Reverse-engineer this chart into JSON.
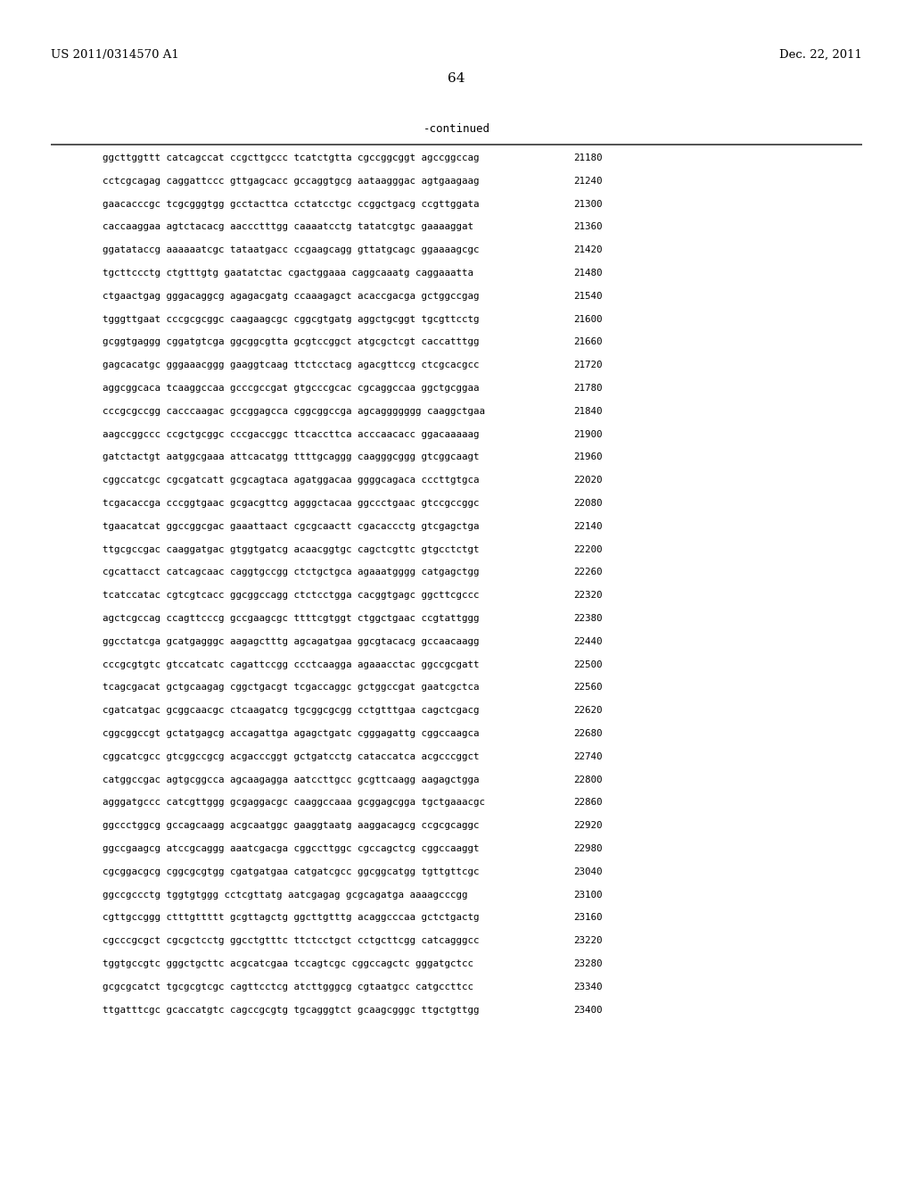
{
  "header_left": "US 2011/0314570 A1",
  "header_right": "Dec. 22, 2011",
  "page_number": "64",
  "continued_label": "-continued",
  "background_color": "#ffffff",
  "text_color": "#000000",
  "sequence_lines": [
    [
      "ggcttggttt catcagccat ccgcttgccc tcatctgtta cgccggcggt agccggccag",
      "21180"
    ],
    [
      "cctcgcagag caggattccc gttgagcacc gccaggtgcg aataagggac agtgaagaag",
      "21240"
    ],
    [
      "gaacacccgc tcgcgggtgg gcctacttca cctatcctgc ccggctgacg ccgttggata",
      "21300"
    ],
    [
      "caccaaggaa agtctacacg aaccctttgg caaaatcctg tatatcgtgc gaaaaggat",
      "21360"
    ],
    [
      "ggatataccg aaaaaatcgc tataatgacc ccgaagcagg gttatgcagc ggaaaagcgc",
      "21420"
    ],
    [
      "tgcttccctg ctgtttgtg gaatatctac cgactggaaa caggcaaatg caggaaatta",
      "21480"
    ],
    [
      "ctgaactgag gggacaggcg agagacgatg ccaaagagct acaccgacga gctggccgag",
      "21540"
    ],
    [
      "tgggttgaat cccgcgcggc caagaagcgc cggcgtgatg aggctgcggt tgcgttcctg",
      "21600"
    ],
    [
      "gcggtgaggg cggatgtcga ggcggcgtta gcgtccggct atgcgctcgt caccatttgg",
      "21660"
    ],
    [
      "gagcacatgc gggaaacggg gaaggtcaag ttctcctacg agacgttccg ctcgcacgcc",
      "21720"
    ],
    [
      "aggcggcaca tcaaggccaa gcccgccgat gtgcccgcac cgcaggccaa ggctgcggaa",
      "21780"
    ],
    [
      "cccgcgccgg cacccaagac gccggagcca cggcggccga agcaggggggg caaggctgaa",
      "21840"
    ],
    [
      "aagccggccc ccgctgcggc cccgaccggc ttcaccttca acccaacacc ggacaaaaag",
      "21900"
    ],
    [
      "gatctactgt aatggcgaaa attcacatgg ttttgcaggg caagggcggg gtcggcaagt",
      "21960"
    ],
    [
      "cggccatcgc cgcgatcatt gcgcagtaca agatggacaa ggggcagaca cccttgtgca",
      "22020"
    ],
    [
      "tcgacaccga cccggtgaac gcgacgttcg agggctacaa ggccctgaac gtccgccggc",
      "22080"
    ],
    [
      "tgaacatcat ggccggcgac gaaattaact cgcgcaactt cgacaccctg gtcgagctga",
      "22140"
    ],
    [
      "ttgcgccgac caaggatgac gtggtgatcg acaacggtgc cagctcgttc gtgcctctgt",
      "22200"
    ],
    [
      "cgcattacct catcagcaac caggtgccgg ctctgctgca agaaatgggg catgagctgg",
      "22260"
    ],
    [
      "tcatccatac cgtcgtcacc ggcggccagg ctctcctgga cacggtgagc ggcttcgccc",
      "22320"
    ],
    [
      "agctcgccag ccagttcccg gccgaagcgc ttttcgtggt ctggctgaac ccgtattggg",
      "22380"
    ],
    [
      "ggcctatcga gcatgagggc aagagctttg agcagatgaa ggcgtacacg gccaacaagg",
      "22440"
    ],
    [
      "cccgcgtgtc gtccatcatc cagattccgg ccctcaagga agaaacctac ggccgcgatt",
      "22500"
    ],
    [
      "tcagcgacat gctgcaagag cggctgacgt tcgaccaggc gctggccgat gaatcgctca",
      "22560"
    ],
    [
      "cgatcatgac gcggcaacgc ctcaagatcg tgcggcgcgg cctgtttgaa cagctcgacg",
      "22620"
    ],
    [
      "cggcggccgt gctatgagcg accagattga agagctgatc cgggagattg cggccaagca",
      "22680"
    ],
    [
      "cggcatcgcc gtcggccgcg acgacccggt gctgatcctg cataccatca acgcccggct",
      "22740"
    ],
    [
      "catggccgac agtgcggcca agcaagagga aatccttgcc gcgttcaagg aagagctgga",
      "22800"
    ],
    [
      "agggatgccc catcgttggg gcgaggacgc caaggccaaa gcggagcgga tgctgaaacgc",
      "22860"
    ],
    [
      "ggccctggcg gccagcaagg acgcaatggc gaaggtaatg aaggacagcg ccgcgcaggc",
      "22920"
    ],
    [
      "ggccgaagcg atccgcaggg aaatcgacga cggccttggc cgccagctcg cggccaaggt",
      "22980"
    ],
    [
      "cgcggacgcg cggcgcgtgg cgatgatgaa catgatcgcc ggcggcatgg tgttgttcgc",
      "23040"
    ],
    [
      "ggccgccctg tggtgtggg cctcgttatg aatcgagag gcgcagatga aaaagcccgg",
      "23100"
    ],
    [
      "cgttgccggg ctttgttttt gcgttagctg ggcttgtttg acaggcccaa gctctgactg",
      "23160"
    ],
    [
      "cgcccgcgct cgcgctcctg ggcctgtttc ttctcctgct cctgcttcgg catcagggcc",
      "23220"
    ],
    [
      "tggtgccgtc gggctgcttc acgcatcgaa tccagtcgc cggccagctc gggatgctcc",
      "23280"
    ],
    [
      "gcgcgcatct tgcgcgtcgc cagttcctcg atcttgggcg cgtaatgcc catgccttcc",
      "23340"
    ],
    [
      "ttgatttcgc gcaccatgtc cagccgcgtg tgcagggtct gcaagcgggc ttgctgttgg",
      "23400"
    ]
  ]
}
